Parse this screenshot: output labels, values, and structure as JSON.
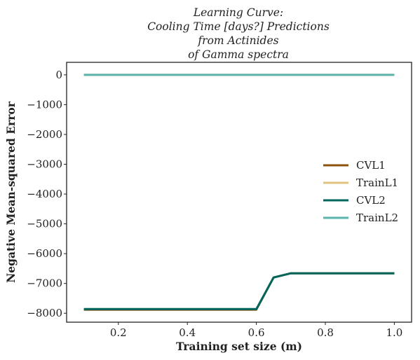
{
  "chart_data": {
    "type": "line",
    "title_lines": [
      "Learning Curve:",
      "Cooling Time [days?] Predictions",
      "from Actinides",
      "of Gamma spectra"
    ],
    "xlabel": "Training set size (m)",
    "ylabel": "Negative Mean-squared Error",
    "xlim": [
      0.05,
      1.05
    ],
    "ylim": [
      -8300,
      420
    ],
    "xticks": [
      0.2,
      0.4,
      0.6,
      0.8,
      1.0
    ],
    "xtick_labels": [
      "0.2",
      "0.4",
      "0.6",
      "0.8",
      "1.0"
    ],
    "yticks": [
      0,
      -1000,
      -2000,
      -3000,
      -4000,
      -5000,
      -6000,
      -7000,
      -8000
    ],
    "ytick_labels": [
      "0",
      "−1000",
      "−2000",
      "−3000",
      "−4000",
      "−5000",
      "−6000",
      "−7000",
      "−8000"
    ],
    "grid": false,
    "legend_position": "center-right",
    "x": [
      0.1,
      0.15,
      0.2,
      0.25,
      0.3,
      0.35,
      0.4,
      0.45,
      0.5,
      0.55,
      0.6,
      0.65,
      0.7,
      0.75,
      0.8,
      0.85,
      0.9,
      0.95,
      1.0
    ],
    "series": [
      {
        "name": "CVL1",
        "color": "#8c510a",
        "values": [
          -7880,
          -7880,
          -7880,
          -7880,
          -7880,
          -7880,
          -7880,
          -7880,
          -7880,
          -7880,
          -7880,
          -6800,
          -6660,
          -6660,
          -6660,
          -6660,
          -6660,
          -6660,
          -6660
        ]
      },
      {
        "name": "TrainL1",
        "color": "#dfc27d",
        "values": [
          0,
          0,
          0,
          0,
          0,
          0,
          0,
          0,
          0,
          0,
          0,
          0,
          0,
          0,
          0,
          0,
          0,
          0,
          0
        ]
      },
      {
        "name": "CVL2",
        "color": "#01665e",
        "values": [
          -7860,
          -7860,
          -7860,
          -7860,
          -7860,
          -7860,
          -7860,
          -7860,
          -7860,
          -7860,
          -7860,
          -6800,
          -6660,
          -6660,
          -6660,
          -6660,
          -6660,
          -6660,
          -6660
        ]
      },
      {
        "name": "TrainL2",
        "color": "#5ab4ac",
        "values": [
          0,
          0,
          0,
          0,
          0,
          0,
          0,
          0,
          0,
          0,
          0,
          0,
          0,
          0,
          0,
          0,
          0,
          0,
          0
        ]
      }
    ]
  }
}
